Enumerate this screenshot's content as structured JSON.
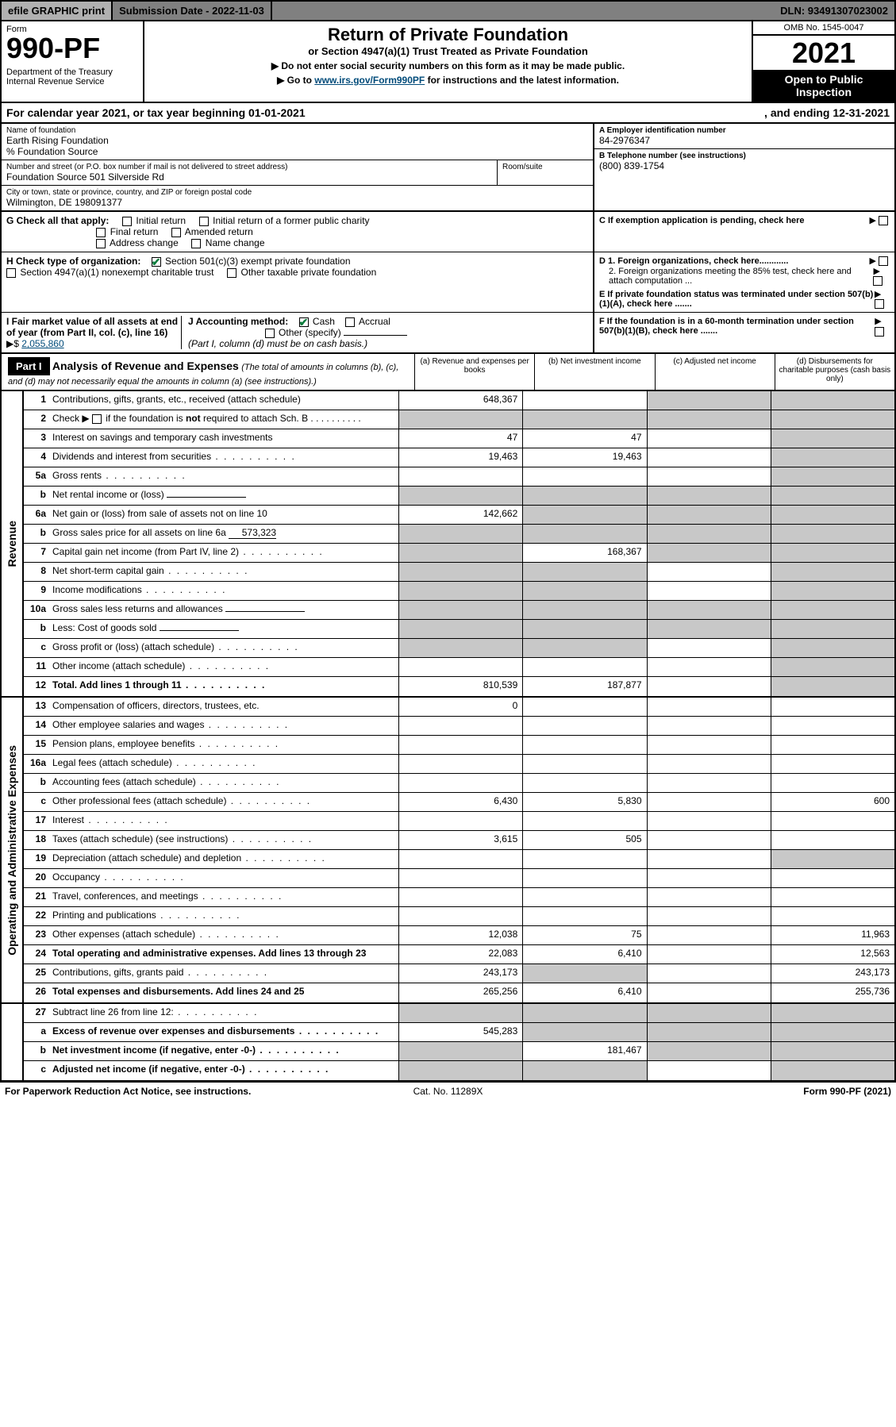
{
  "topbar": {
    "efile": "efile GRAPHIC print",
    "subdate_label": "Submission Date - 2022-11-03",
    "dln": "DLN: 93491307023002"
  },
  "header": {
    "form_label": "Form",
    "form_number": "990-PF",
    "dept": "Department of the Treasury\nInternal Revenue Service",
    "title": "Return of Private Foundation",
    "subtitle": "or Section 4947(a)(1) Trust Treated as Private Foundation",
    "note1": "▶ Do not enter social security numbers on this form as it may be made public.",
    "note2_pre": "▶ Go to ",
    "note2_link": "www.irs.gov/Form990PF",
    "note2_post": " for instructions and the latest information.",
    "omb": "OMB No. 1545-0047",
    "year": "2021",
    "open": "Open to Public Inspection"
  },
  "calyear": {
    "text": "For calendar year 2021, or tax year beginning 01-01-2021",
    "ending": ", and ending 12-31-2021"
  },
  "info": {
    "name_label": "Name of foundation",
    "name": "Earth Rising Foundation",
    "co": "% Foundation Source",
    "addr_label": "Number and street (or P.O. box number if mail is not delivered to street address)",
    "addr": "Foundation Source 501 Silverside Rd",
    "room_label": "Room/suite",
    "city_label": "City or town, state or province, country, and ZIP or foreign postal code",
    "city": "Wilmington, DE  198091377",
    "a_label": "A Employer identification number",
    "a_val": "84-2976347",
    "b_label": "B Telephone number (see instructions)",
    "b_val": "(800) 839-1754",
    "c_label": "C If exemption application is pending, check here",
    "d1": "D 1. Foreign organizations, check here............",
    "d2": "2. Foreign organizations meeting the 85% test, check here and attach computation ...",
    "e": "E  If private foundation status was terminated under section 507(b)(1)(A), check here .......",
    "f": "F  If the foundation is in a 60-month termination under section 507(b)(1)(B), check here .......",
    "g_label": "G Check all that apply:",
    "g_opts": [
      "Initial return",
      "Initial return of a former public charity",
      "Final return",
      "Amended return",
      "Address change",
      "Name change"
    ],
    "h_label": "H Check type of organization:",
    "h_opts": [
      "Section 501(c)(3) exempt private foundation",
      "Section 4947(a)(1) nonexempt charitable trust",
      "Other taxable private foundation"
    ],
    "i_label": "I Fair market value of all assets at end of year (from Part II, col. (c), line 16)",
    "i_val": "2,055,860",
    "j_label": "J Accounting method:",
    "j_opts": [
      "Cash",
      "Accrual",
      "Other (specify)"
    ],
    "j_note": "(Part I, column (d) must be on cash basis.)"
  },
  "part1": {
    "label": "Part I",
    "title": "Analysis of Revenue and Expenses",
    "title_note": "(The total of amounts in columns (b), (c), and (d) may not necessarily equal the amounts in column (a) (see instructions).)",
    "col_a": "(a)   Revenue and expenses per books",
    "col_b": "(b)   Net investment income",
    "col_c": "(c)   Adjusted net income",
    "col_d": "(d)   Disbursements for charitable purposes (cash basis only)"
  },
  "revenue_label": "Revenue",
  "expenses_label": "Operating and Administrative Expenses",
  "rows_revenue": [
    {
      "n": "1",
      "d": "Contributions, gifts, grants, etc., received (attach schedule)",
      "a": "648,367",
      "b": "",
      "c": "shade",
      "dcol": "shade"
    },
    {
      "n": "2",
      "d": "Check ▶ ☐ if the foundation is not required to attach Sch. B",
      "a": "shade",
      "b": "shade",
      "c": "shade",
      "dcol": "shade",
      "nodots": true,
      "bold_not": true
    },
    {
      "n": "3",
      "d": "Interest on savings and temporary cash investments",
      "a": "47",
      "b": "47",
      "c": "",
      "dcol": "shade"
    },
    {
      "n": "4",
      "d": "Dividends and interest from securities",
      "a": "19,463",
      "b": "19,463",
      "c": "",
      "dcol": "shade"
    },
    {
      "n": "5a",
      "d": "Gross rents",
      "a": "",
      "b": "",
      "c": "",
      "dcol": "shade"
    },
    {
      "n": "b",
      "d": "Net rental income or (loss)",
      "a": "shade",
      "b": "shade",
      "c": "shade",
      "dcol": "shade",
      "inline": true
    },
    {
      "n": "6a",
      "d": "Net gain or (loss) from sale of assets not on line 10",
      "a": "142,662",
      "b": "shade",
      "c": "shade",
      "dcol": "shade"
    },
    {
      "n": "b",
      "d": "Gross sales price for all assets on line 6a",
      "a": "shade",
      "b": "shade",
      "c": "shade",
      "dcol": "shade",
      "inline": true,
      "inline_val": "573,323"
    },
    {
      "n": "7",
      "d": "Capital gain net income (from Part IV, line 2)",
      "a": "shade",
      "b": "168,367",
      "c": "shade",
      "dcol": "shade"
    },
    {
      "n": "8",
      "d": "Net short-term capital gain",
      "a": "shade",
      "b": "shade",
      "c": "",
      "dcol": "shade"
    },
    {
      "n": "9",
      "d": "Income modifications",
      "a": "shade",
      "b": "shade",
      "c": "",
      "dcol": "shade"
    },
    {
      "n": "10a",
      "d": "Gross sales less returns and allowances",
      "a": "shade",
      "b": "shade",
      "c": "shade",
      "dcol": "shade",
      "inline": true
    },
    {
      "n": "b",
      "d": "Less: Cost of goods sold",
      "a": "shade",
      "b": "shade",
      "c": "shade",
      "dcol": "shade",
      "inline": true
    },
    {
      "n": "c",
      "d": "Gross profit or (loss) (attach schedule)",
      "a": "shade",
      "b": "shade",
      "c": "",
      "dcol": "shade"
    },
    {
      "n": "11",
      "d": "Other income (attach schedule)",
      "a": "",
      "b": "",
      "c": "",
      "dcol": "shade"
    },
    {
      "n": "12",
      "d": "Total. Add lines 1 through 11",
      "a": "810,539",
      "b": "187,877",
      "c": "",
      "dcol": "shade",
      "bold": true
    }
  ],
  "rows_expenses": [
    {
      "n": "13",
      "d": "Compensation of officers, directors, trustees, etc.",
      "a": "0",
      "b": "",
      "c": "",
      "dcol": ""
    },
    {
      "n": "14",
      "d": "Other employee salaries and wages",
      "a": "",
      "b": "",
      "c": "",
      "dcol": ""
    },
    {
      "n": "15",
      "d": "Pension plans, employee benefits",
      "a": "",
      "b": "",
      "c": "",
      "dcol": ""
    },
    {
      "n": "16a",
      "d": "Legal fees (attach schedule)",
      "a": "",
      "b": "",
      "c": "",
      "dcol": ""
    },
    {
      "n": "b",
      "d": "Accounting fees (attach schedule)",
      "a": "",
      "b": "",
      "c": "",
      "dcol": ""
    },
    {
      "n": "c",
      "d": "Other professional fees (attach schedule)",
      "a": "6,430",
      "b": "5,830",
      "c": "",
      "dcol": "600"
    },
    {
      "n": "17",
      "d": "Interest",
      "a": "",
      "b": "",
      "c": "",
      "dcol": ""
    },
    {
      "n": "18",
      "d": "Taxes (attach schedule) (see instructions)",
      "a": "3,615",
      "b": "505",
      "c": "",
      "dcol": ""
    },
    {
      "n": "19",
      "d": "Depreciation (attach schedule) and depletion",
      "a": "",
      "b": "",
      "c": "",
      "dcol": "shade"
    },
    {
      "n": "20",
      "d": "Occupancy",
      "a": "",
      "b": "",
      "c": "",
      "dcol": ""
    },
    {
      "n": "21",
      "d": "Travel, conferences, and meetings",
      "a": "",
      "b": "",
      "c": "",
      "dcol": ""
    },
    {
      "n": "22",
      "d": "Printing and publications",
      "a": "",
      "b": "",
      "c": "",
      "dcol": ""
    },
    {
      "n": "23",
      "d": "Other expenses (attach schedule)",
      "a": "12,038",
      "b": "75",
      "c": "",
      "dcol": "11,963"
    },
    {
      "n": "24",
      "d": "Total operating and administrative expenses. Add lines 13 through 23",
      "a": "22,083",
      "b": "6,410",
      "c": "",
      "dcol": "12,563",
      "bold": true
    },
    {
      "n": "25",
      "d": "Contributions, gifts, grants paid",
      "a": "243,173",
      "b": "shade",
      "c": "",
      "dcol": "243,173"
    },
    {
      "n": "26",
      "d": "Total expenses and disbursements. Add lines 24 and 25",
      "a": "265,256",
      "b": "6,410",
      "c": "",
      "dcol": "255,736",
      "bold": true
    }
  ],
  "rows_bottom": [
    {
      "n": "27",
      "d": "Subtract line 26 from line 12:",
      "a": "shade",
      "b": "shade",
      "c": "shade",
      "dcol": "shade"
    },
    {
      "n": "a",
      "d": "Excess of revenue over expenses and disbursements",
      "a": "545,283",
      "b": "shade",
      "c": "shade",
      "dcol": "shade",
      "bold": true
    },
    {
      "n": "b",
      "d": "Net investment income (if negative, enter -0-)",
      "a": "shade",
      "b": "181,467",
      "c": "shade",
      "dcol": "shade",
      "bold": true
    },
    {
      "n": "c",
      "d": "Adjusted net income (if negative, enter -0-)",
      "a": "shade",
      "b": "shade",
      "c": "",
      "dcol": "shade",
      "bold": true
    }
  ],
  "footer": {
    "left": "For Paperwork Reduction Act Notice, see instructions.",
    "mid": "Cat. No. 11289X",
    "right": "Form 990-PF (2021)"
  }
}
